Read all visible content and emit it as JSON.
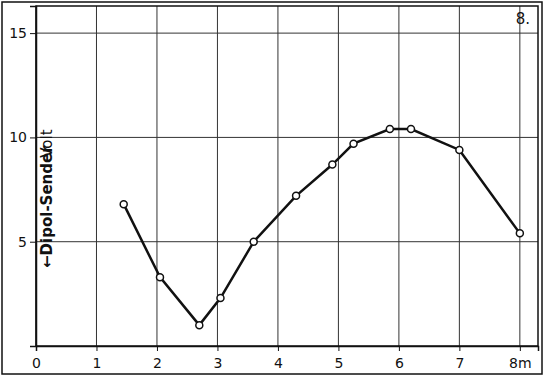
{
  "chart_data": {
    "type": "line",
    "title": "8.",
    "y_label": "Volt",
    "annotation": "←Dipol-Sender",
    "x": [
      1.45,
      2.05,
      2.7,
      3.05,
      3.6,
      4.3,
      4.9,
      5.25,
      5.85,
      6.2,
      7.0,
      8.0
    ],
    "series": [
      {
        "name": "Volt",
        "color": "#111111",
        "marker": "circle",
        "line_style": "solid",
        "values": [
          6.8,
          3.3,
          1.0,
          2.3,
          5.0,
          7.2,
          8.7,
          9.7,
          10.4,
          10.4,
          9.4,
          5.4
        ]
      }
    ],
    "xlim": [
      0,
      8.3
    ],
    "xticks": [
      0,
      1,
      2,
      3,
      4,
      5,
      6,
      7,
      {
        "value": 8,
        "label": "8m"
      }
    ],
    "ylim": [
      0,
      16.3
    ],
    "yticks": [
      5,
      10,
      15
    ],
    "grid": true
  }
}
